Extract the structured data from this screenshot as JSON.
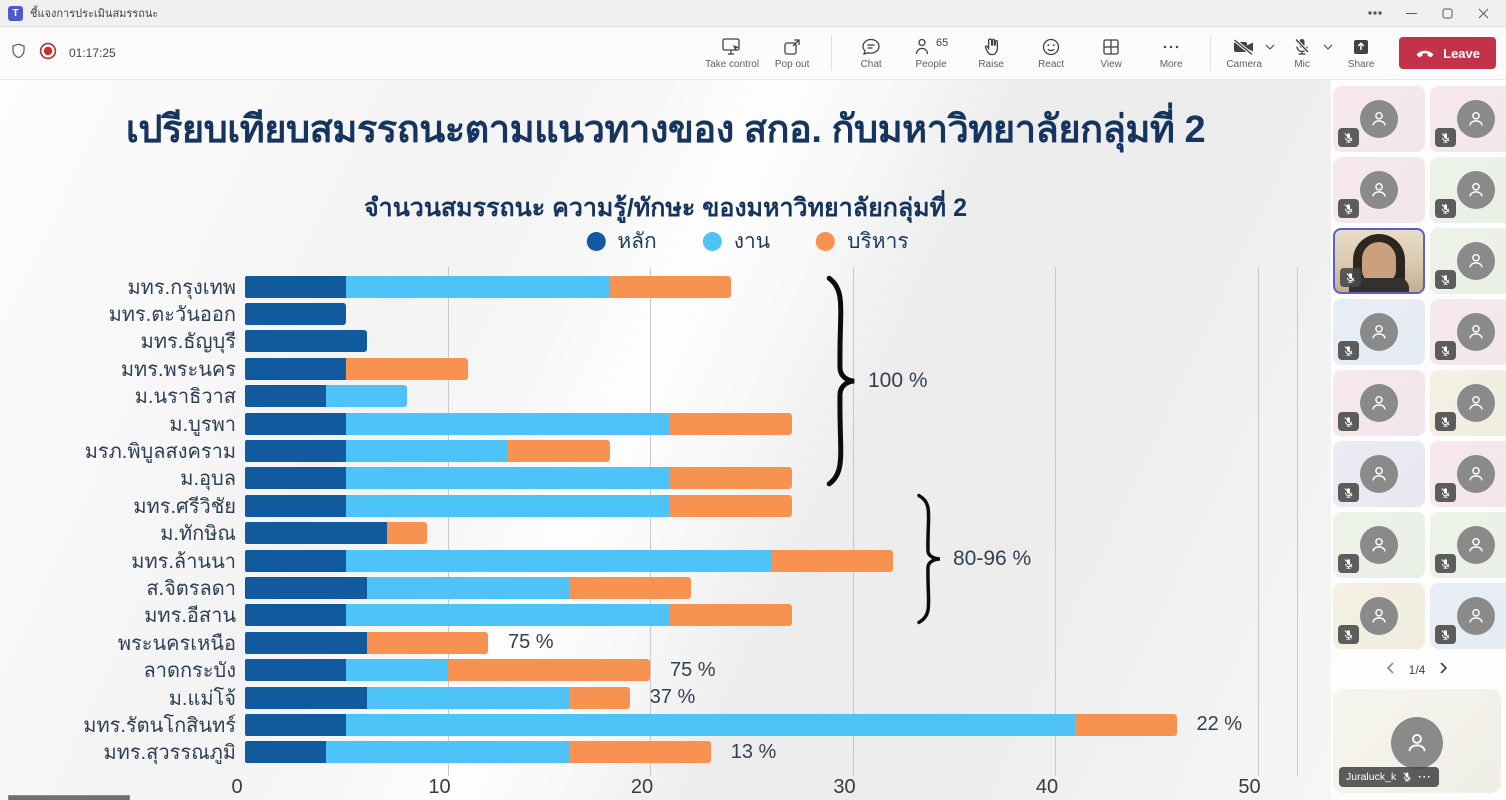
{
  "window": {
    "title": "ชี้แจงการประเมินสมรรถนะ",
    "app_logo": "microsoft-teams",
    "controls": {
      "more": "more",
      "minimize": "minimize",
      "maximize": "maximize",
      "close": "close"
    }
  },
  "toolbar": {
    "recording_timer": "01:17:25",
    "people_count": "65",
    "buttons": {
      "take_control": "Take control",
      "pop_out": "Pop out",
      "chat": "Chat",
      "people": "People",
      "raise": "Raise",
      "react": "React",
      "view": "View",
      "more": "More",
      "camera": "Camera",
      "mic": "Mic",
      "share": "Share"
    },
    "leave_label": "Leave",
    "leave_color": "#c4314b",
    "camera_state": "off",
    "mic_state": "off"
  },
  "slide": {
    "title": "เปรียบเทียบสมรรถนะตามแนวทางของ สกอ. กับมหาวิทยาลัยกลุ่มที่ 2",
    "title_color": "#16355e"
  },
  "chart_data": {
    "type": "bar",
    "orientation": "horizontal",
    "stacked": true,
    "title": "จำนวนสมรรถนะ ความรู้/ทักษะ ของมหาวิทยาลัยกลุ่มที่ 2",
    "xlim": [
      0,
      50
    ],
    "xticks": [
      0,
      10,
      20,
      30,
      40,
      50
    ],
    "grid": true,
    "legend_position": "top",
    "categories": [
      "มทร.กรุงเทพ",
      "มทร.ตะวันออก",
      "มทร.ธัญบุรี",
      "มทร.พระนคร",
      "ม.นราธิวาส",
      "ม.บูรพา",
      "มรภ.พิบูลสงคราม",
      "ม.อุบล",
      "มทร.ศรีวิชัย",
      "ม.ทักษิณ",
      "มทร.ล้านนา",
      "ส.จิตรลดา",
      "มทร.อีสาน",
      "พระนครเหนือ",
      "ลาดกระบัง",
      "ม.แม่โจ้",
      "มทร.รัตนโกสินทร์",
      "มทร.สุวรรณภูมิ"
    ],
    "series": [
      {
        "name": "หลัก",
        "color": "#115a9e",
        "values": [
          5,
          5,
          6,
          5,
          4,
          5,
          5,
          5,
          5,
          7,
          5,
          6,
          5,
          6,
          5,
          6,
          5,
          4
        ]
      },
      {
        "name": "งาน",
        "color": "#4dc3f8",
        "values": [
          13,
          0,
          0,
          0,
          4,
          16,
          8,
          16,
          16,
          0,
          21,
          10,
          16,
          0,
          5,
          10,
          36,
          12
        ]
      },
      {
        "name": "บริหาร",
        "color": "#f79250",
        "values": [
          6,
          0,
          0,
          6,
          0,
          6,
          5,
          6,
          6,
          2,
          6,
          6,
          6,
          6,
          10,
          3,
          5,
          7
        ]
      }
    ],
    "value_labels": [
      "",
      "",
      "",
      "",
      "",
      "",
      "",
      "",
      "",
      "",
      "",
      "",
      "",
      "75 %",
      "75 %",
      "37 %",
      "22 %",
      "13 %"
    ],
    "annotations": [
      {
        "text": "100 %",
        "row_start": 0,
        "row_end": 7
      },
      {
        "text": "80-96 %",
        "row_start": 8,
        "row_end": 12
      }
    ]
  },
  "participants": {
    "tiles": [
      {
        "type": "avatar",
        "muted": true,
        "tone": "pink"
      },
      {
        "type": "avatar",
        "muted": true,
        "tone": "pink"
      },
      {
        "type": "avatar",
        "muted": true,
        "tone": "pink"
      },
      {
        "type": "avatar",
        "muted": true,
        "tone": "green"
      },
      {
        "type": "video",
        "muted": true,
        "tone": "video",
        "active_speaker": true
      },
      {
        "type": "avatar",
        "muted": true,
        "tone": "green"
      },
      {
        "type": "avatar",
        "muted": true,
        "tone": "blue"
      },
      {
        "type": "avatar",
        "muted": true,
        "tone": "pink"
      },
      {
        "type": "avatar",
        "muted": true,
        "tone": "pink"
      },
      {
        "type": "avatar",
        "muted": true,
        "tone": "cream"
      },
      {
        "type": "avatar",
        "muted": true,
        "tone": "lav"
      },
      {
        "type": "avatar",
        "muted": true,
        "tone": "pink"
      },
      {
        "type": "avatar",
        "muted": true,
        "tone": "green"
      },
      {
        "type": "avatar",
        "muted": true,
        "tone": "green"
      },
      {
        "type": "avatar",
        "muted": true,
        "tone": "cream"
      },
      {
        "type": "avatar",
        "muted": true,
        "tone": "blue"
      }
    ],
    "pagination": {
      "current": "1/4"
    },
    "pinned": {
      "name": "Juraluck_k",
      "muted": true
    }
  }
}
